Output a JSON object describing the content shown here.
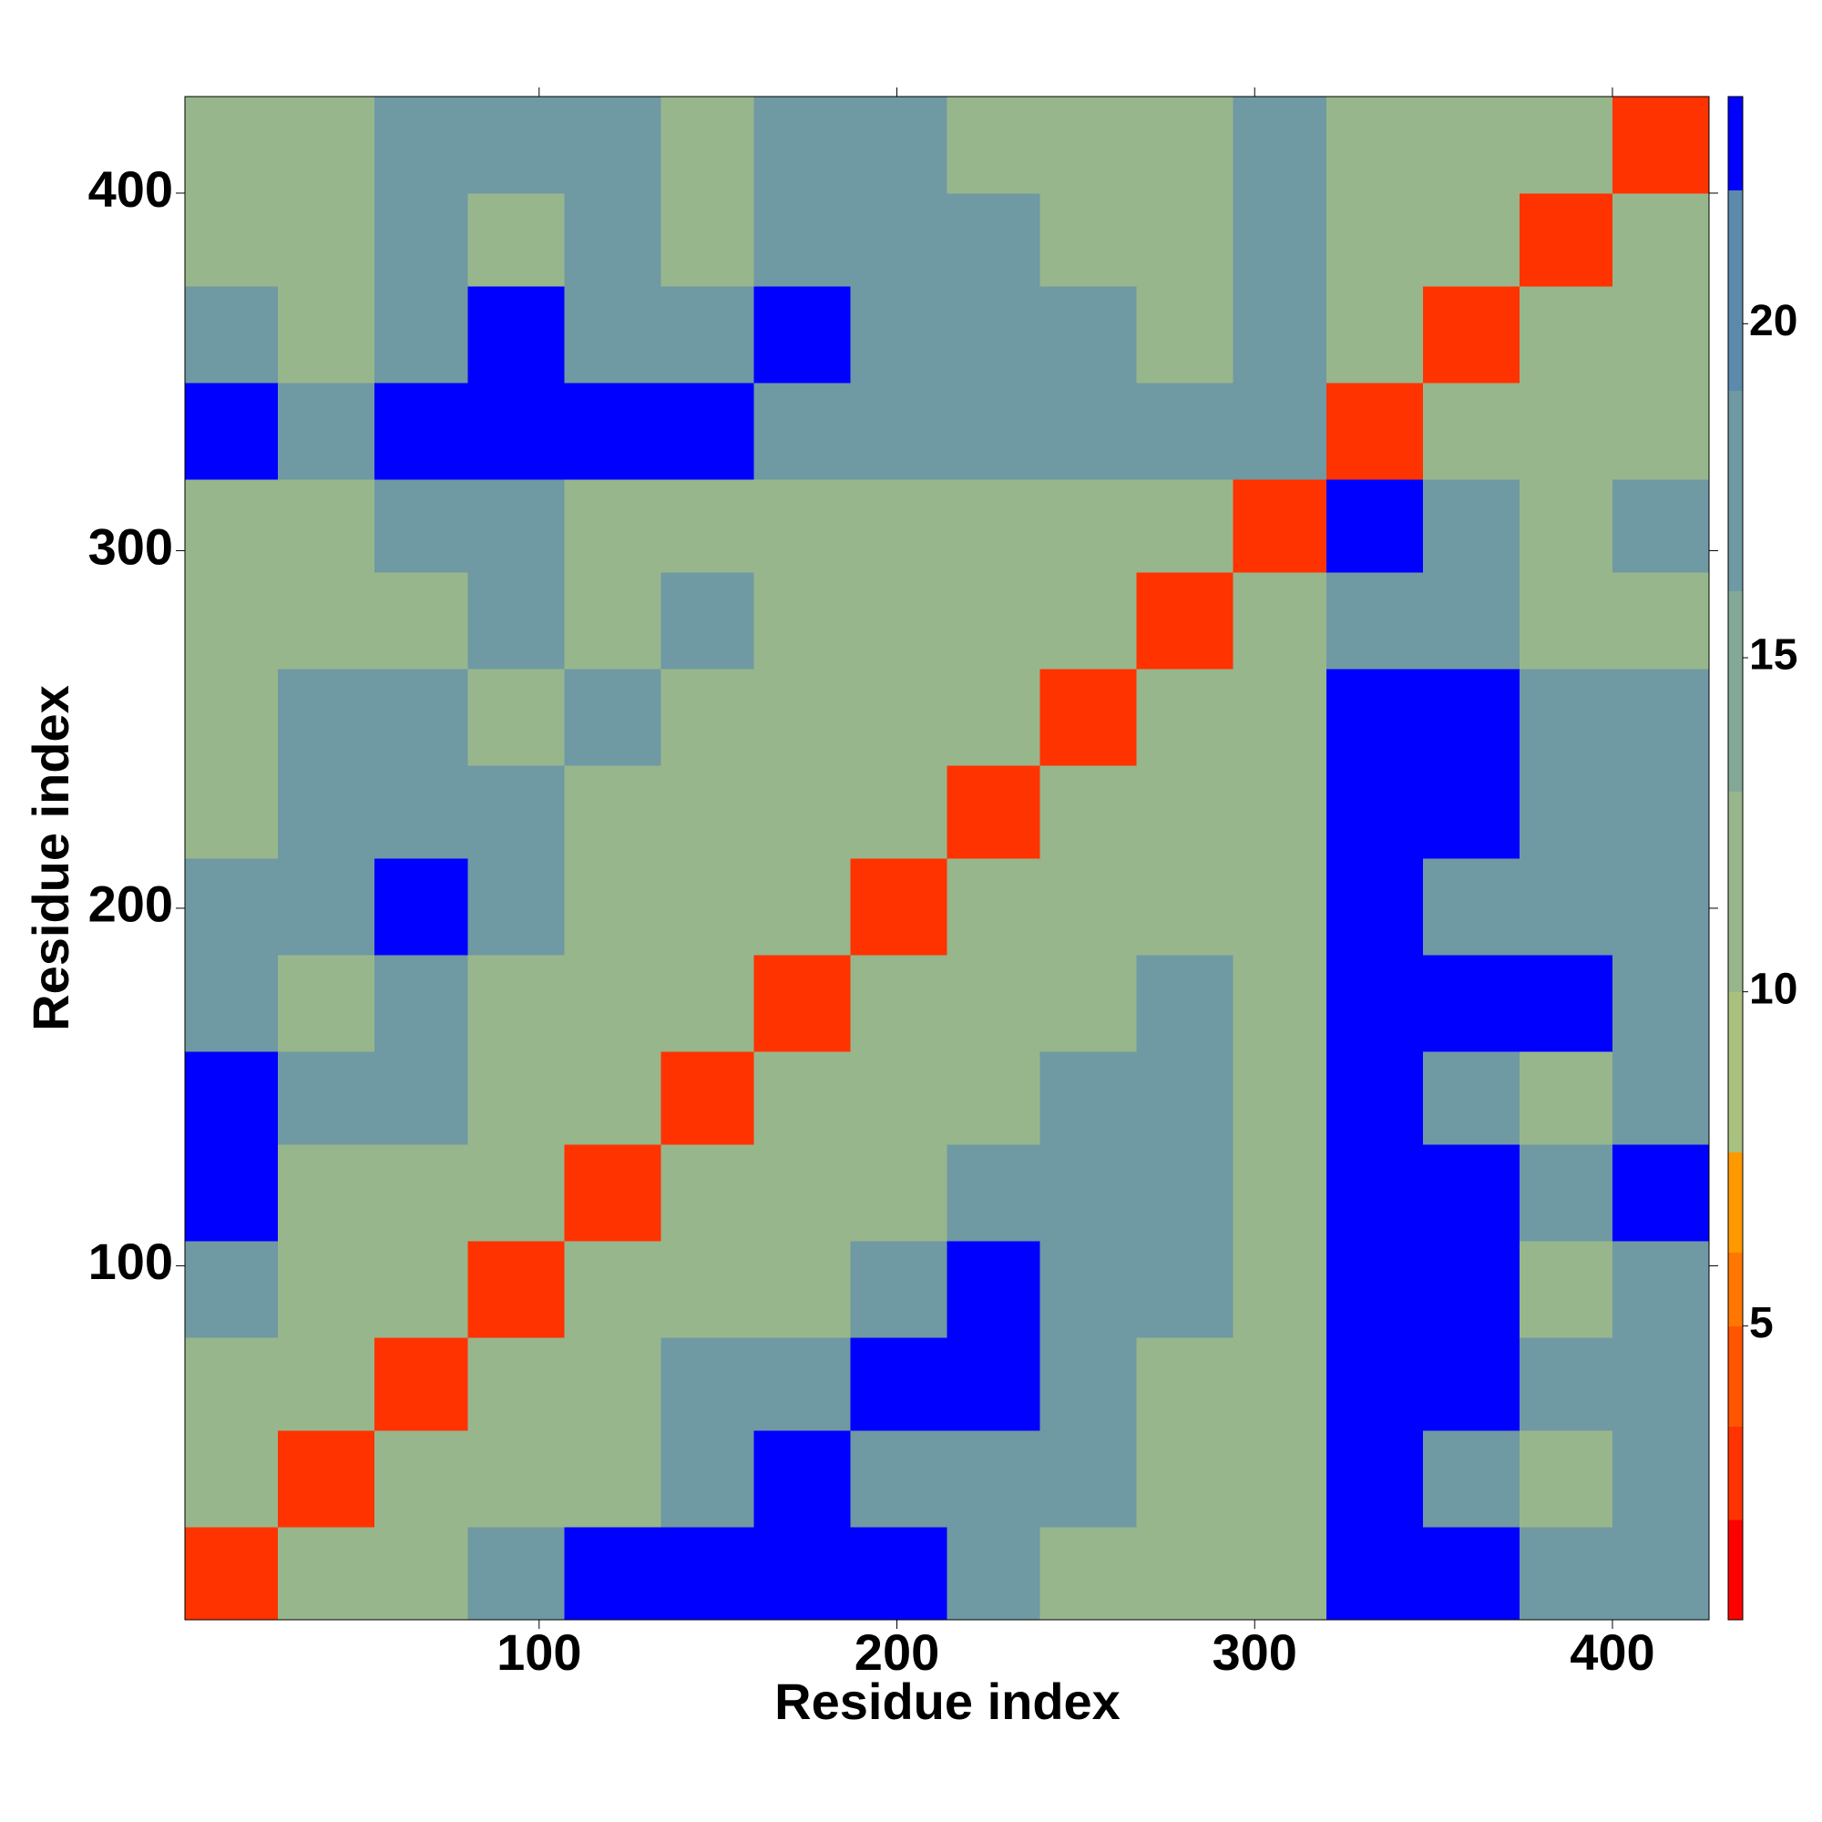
{
  "chart_data": {
    "type": "heatmap",
    "x_label": "Residue index",
    "y_label": "Residue index",
    "x_edges": [
      1,
      27,
      54,
      80,
      107,
      134,
      160,
      187,
      214,
      240,
      267,
      294,
      320,
      347,
      374,
      400,
      427
    ],
    "y_edges": [
      1,
      27,
      54,
      80,
      107,
      134,
      160,
      187,
      214,
      240,
      267,
      294,
      320,
      347,
      374,
      400,
      427
    ],
    "z": [
      [
        3,
        12,
        12,
        17,
        23,
        23,
        23,
        23,
        17,
        12,
        12,
        12,
        23,
        23,
        17,
        17
      ],
      [
        12,
        3,
        12,
        12,
        12,
        17,
        23,
        17,
        17,
        17,
        12,
        12,
        23,
        17,
        12,
        17
      ],
      [
        12,
        12,
        3,
        12,
        12,
        17,
        17,
        23,
        23,
        17,
        12,
        12,
        23,
        23,
        17,
        17
      ],
      [
        17,
        12,
        12,
        3,
        12,
        12,
        12,
        17,
        23,
        17,
        17,
        12,
        23,
        23,
        12,
        17
      ],
      [
        23,
        12,
        12,
        12,
        3,
        12,
        12,
        12,
        17,
        17,
        17,
        12,
        23,
        23,
        17,
        23
      ],
      [
        23,
        17,
        17,
        12,
        12,
        3,
        12,
        12,
        12,
        17,
        17,
        12,
        23,
        17,
        12,
        17
      ],
      [
        17,
        12,
        17,
        12,
        12,
        12,
        3,
        12,
        12,
        12,
        17,
        12,
        23,
        23,
        23,
        17
      ],
      [
        17,
        17,
        23,
        17,
        12,
        12,
        12,
        3,
        12,
        12,
        12,
        12,
        23,
        17,
        17,
        17
      ],
      [
        12,
        17,
        17,
        17,
        12,
        12,
        12,
        12,
        3,
        12,
        12,
        12,
        23,
        23,
        17,
        17
      ],
      [
        12,
        17,
        17,
        12,
        17,
        12,
        12,
        12,
        12,
        3,
        12,
        12,
        23,
        23,
        17,
        17
      ],
      [
        12,
        12,
        12,
        17,
        12,
        17,
        12,
        12,
        12,
        12,
        3,
        12,
        17,
        17,
        12,
        12
      ],
      [
        12,
        12,
        17,
        17,
        12,
        12,
        12,
        12,
        12,
        12,
        12,
        3,
        23,
        17,
        12,
        17
      ],
      [
        23,
        17,
        23,
        23,
        23,
        23,
        17,
        17,
        17,
        17,
        17,
        17,
        3,
        12,
        12,
        12
      ],
      [
        17,
        12,
        17,
        23,
        17,
        17,
        23,
        17,
        17,
        17,
        12,
        17,
        12,
        3,
        12,
        12
      ],
      [
        12,
        12,
        17,
        12,
        17,
        12,
        17,
        17,
        17,
        12,
        12,
        17,
        12,
        12,
        3,
        12
      ],
      [
        12,
        12,
        17,
        17,
        17,
        12,
        17,
        17,
        12,
        12,
        12,
        17,
        12,
        12,
        12,
        3
      ]
    ],
    "xlim": [
      1,
      427
    ],
    "ylim": [
      1,
      427
    ],
    "xticks": [
      100,
      200,
      300,
      400
    ],
    "yticks": [
      100,
      200,
      300,
      400
    ],
    "zlim": [
      0.6,
      23.4
    ],
    "zticks": [
      5,
      10,
      15,
      20
    ],
    "colorscale": [
      {
        "to": 2.1,
        "color": "#ff0000"
      },
      {
        "to": 3.5,
        "color": "#ff3300"
      },
      {
        "to": 5,
        "color": "#ff5500"
      },
      {
        "to": 6.1,
        "color": "#ff7700"
      },
      {
        "to": 7.6,
        "color": "#ff9900"
      },
      {
        "to": 10,
        "color": "#a9c07f"
      },
      {
        "to": 13,
        "color": "#98b68c"
      },
      {
        "to": 16,
        "color": "#84a897"
      },
      {
        "to": 19,
        "color": "#6f99a3"
      },
      {
        "to": 22,
        "color": "#5b8aab"
      },
      {
        "to": 23.4,
        "color": "#0000ff"
      }
    ]
  }
}
